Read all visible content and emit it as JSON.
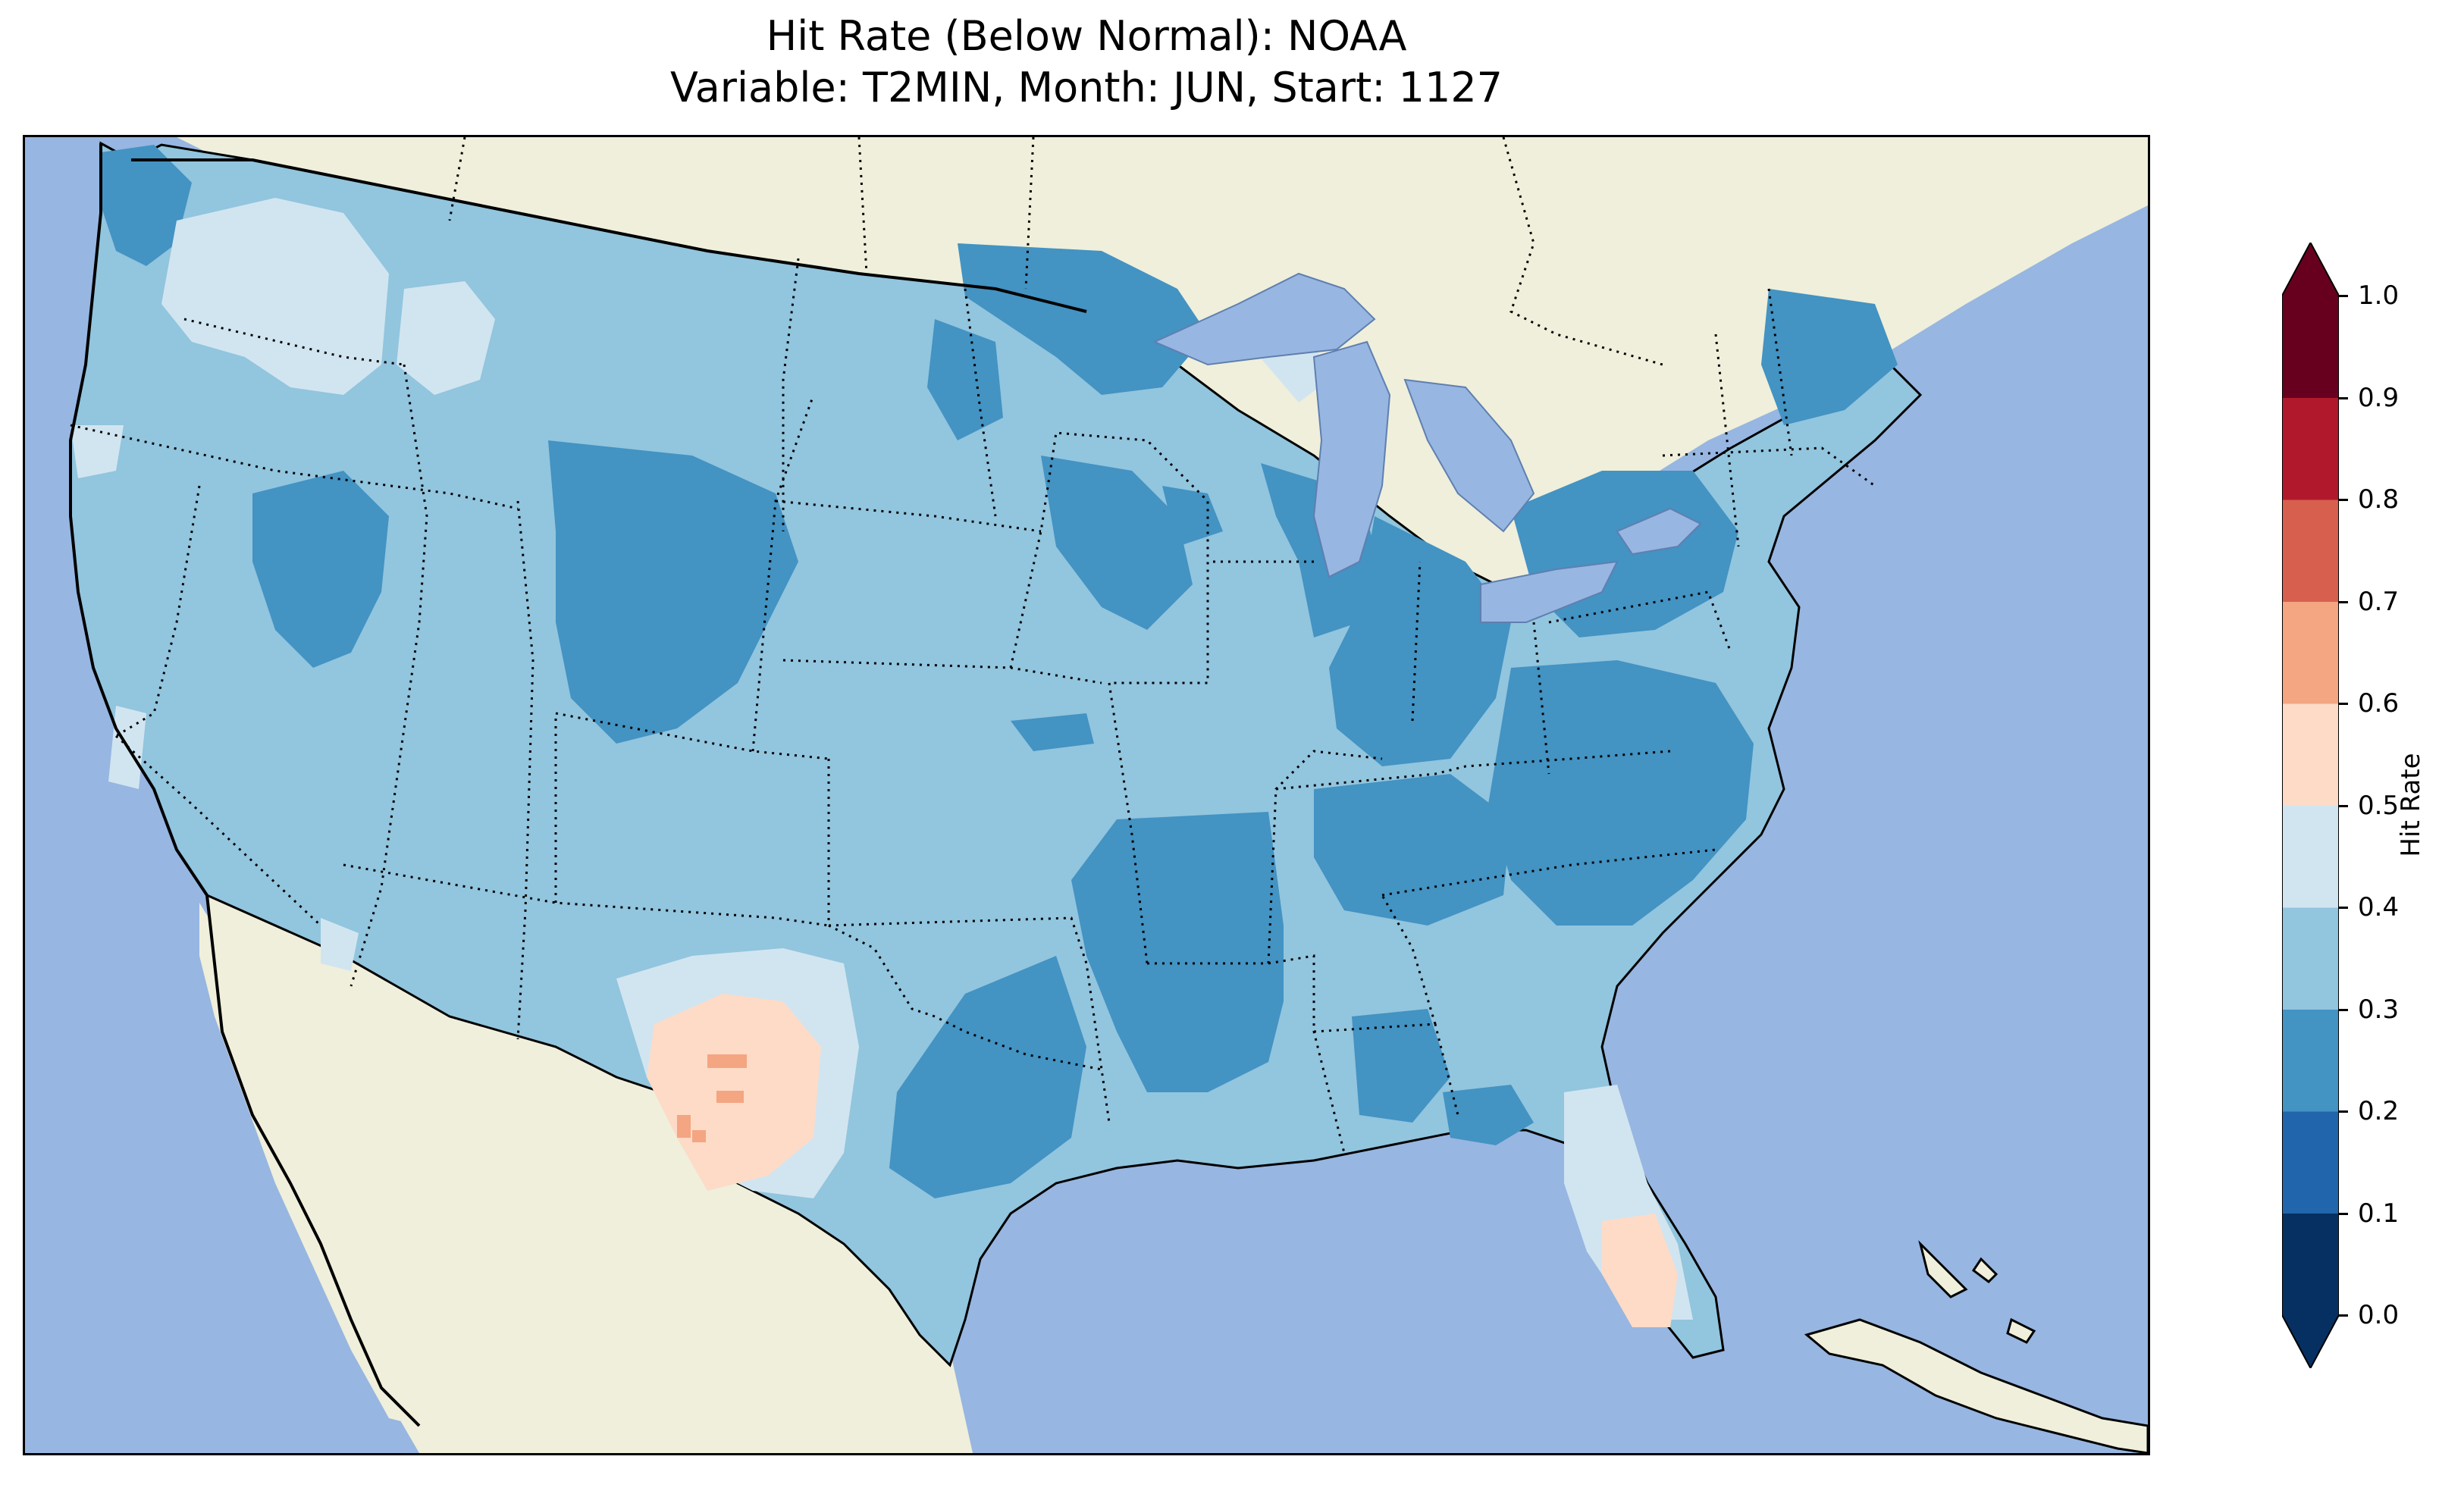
{
  "title": {
    "line1": "Hit Rate (Below Normal): NOAA",
    "line2": "Variable: T2MIN, Month: JUN, Start: 1127"
  },
  "colorbar": {
    "label": "Hit Rate",
    "ticks": [
      "0.0",
      "0.1",
      "0.2",
      "0.3",
      "0.4",
      "0.5",
      "0.6",
      "0.7",
      "0.8",
      "0.9",
      "1.0"
    ],
    "bins": [
      {
        "range": [
          0.0,
          0.1
        ],
        "color": "#053061"
      },
      {
        "range": [
          0.1,
          0.2
        ],
        "color": "#2166ac"
      },
      {
        "range": [
          0.2,
          0.3
        ],
        "color": "#4393c3"
      },
      {
        "range": [
          0.3,
          0.4
        ],
        "color": "#92c5de"
      },
      {
        "range": [
          0.4,
          0.5
        ],
        "color": "#d1e5f0"
      },
      {
        "range": [
          0.5,
          0.6
        ],
        "color": "#fddbc7"
      },
      {
        "range": [
          0.6,
          0.7
        ],
        "color": "#f4a582"
      },
      {
        "range": [
          0.7,
          0.8
        ],
        "color": "#d6604d"
      },
      {
        "range": [
          0.8,
          0.9
        ],
        "color": "#b2182b"
      },
      {
        "range": [
          0.9,
          1.0
        ],
        "color": "#67001f"
      }
    ],
    "extend": "both"
  },
  "map": {
    "region": "Contiguous United States",
    "ocean_color": "#97b6e1",
    "land_color": "#efefdb",
    "dominant_class": "0.3-0.4",
    "notable_areas": [
      {
        "area": "west Texas",
        "class": "0.5-0.6",
        "max_class": "0.6-0.7"
      },
      {
        "area": "south Florida",
        "class": "0.5-0.6"
      },
      {
        "area": "Pacific Northwest interior",
        "class": "0.4-0.5"
      },
      {
        "area": "Mississippi valley and Southeast",
        "class": "0.2-0.3"
      }
    ]
  }
}
